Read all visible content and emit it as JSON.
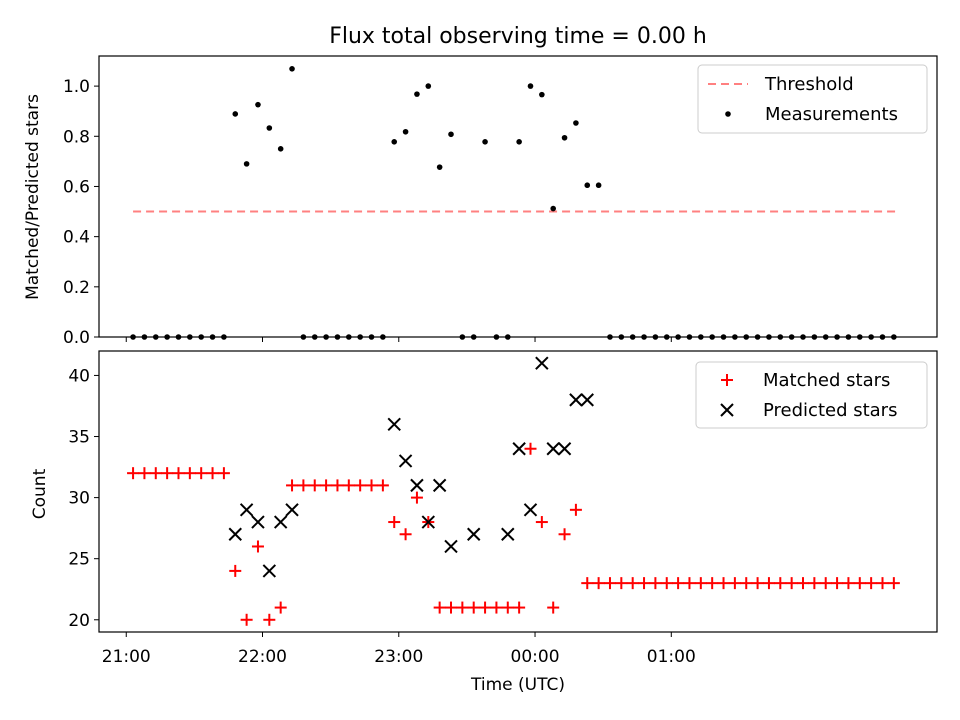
{
  "figure": {
    "title": "Flux total observing time = 0.00 h"
  },
  "chart_data": [
    {
      "type": "scatter",
      "title": "Flux total observing time = 0.00 h",
      "xlabel": "",
      "ylabel": "Matched/Predicted stars",
      "xlim": [
        "20:48",
        "26:57"
      ],
      "ylim": [
        0,
        1.12
      ],
      "yticks": [
        0.0,
        0.2,
        0.4,
        0.6,
        0.8,
        1.0
      ],
      "ytick_labels": [
        "0.0",
        "0.2",
        "0.4",
        "0.6",
        "0.8",
        "1.0"
      ],
      "grid": false,
      "legend": "top-right",
      "threshold": {
        "name": "Threshold",
        "y": 0.5,
        "x_start": "21:03",
        "x_end": "26:40",
        "color": "#ff8080",
        "style": "dashed"
      },
      "series": [
        {
          "name": "Measurements",
          "color": "#000000",
          "marker": "dot",
          "x": [
            "21:03",
            "21:08",
            "21:13",
            "21:18",
            "21:23",
            "21:28",
            "21:33",
            "21:38",
            "21:43",
            "21:48",
            "21:53",
            "21:58",
            "22:03",
            "22:08",
            "22:13",
            "22:18",
            "22:23",
            "22:28",
            "22:33",
            "22:38",
            "22:43",
            "22:48",
            "22:53",
            "22:58",
            "23:03",
            "23:08",
            "23:13",
            "23:18",
            "23:23",
            "23:28",
            "23:33",
            "23:38",
            "23:43",
            "23:48",
            "23:53",
            "23:58",
            "24:03",
            "24:08",
            "24:13",
            "24:18",
            "24:23",
            "24:28",
            "24:33",
            "24:38",
            "24:43",
            "24:48",
            "24:53",
            "24:58",
            "25:03",
            "25:08",
            "25:13",
            "25:18",
            "25:23",
            "25:28",
            "25:33",
            "25:38",
            "25:43",
            "25:48",
            "25:53",
            "25:58",
            "26:03",
            "26:08",
            "26:13",
            "26:18",
            "26:23",
            "26:28",
            "26:33",
            "26:38"
          ],
          "y": [
            0,
            0,
            0,
            0,
            0,
            0,
            0,
            0,
            0,
            0.889,
            0.69,
            0.926,
            0.833,
            0.75,
            1.069,
            0,
            0,
            0,
            0,
            0,
            0,
            0,
            0,
            0.778,
            0.818,
            0.968,
            1.0,
            0.677,
            0.808,
            0,
            0,
            0.778,
            0,
            0,
            0.778,
            1.0,
            0.966,
            0.512,
            0.794,
            0.853,
            0.605,
            0.605,
            0,
            0,
            0,
            0,
            0,
            0,
            0,
            0,
            0,
            0,
            0,
            0,
            0,
            0,
            0,
            0,
            0,
            0,
            0,
            0,
            0,
            0,
            0,
            0,
            0,
            0
          ]
        }
      ]
    },
    {
      "type": "scatter",
      "xlabel": "Time (UTC)",
      "ylabel": "Count",
      "xlim": [
        "20:48",
        "26:57"
      ],
      "ylim": [
        19,
        42
      ],
      "yticks": [
        20,
        25,
        30,
        35,
        40
      ],
      "ytick_labels": [
        "20",
        "25",
        "30",
        "35",
        "40"
      ],
      "xticks": [
        "21:00",
        "22:00",
        "23:00",
        "24:00",
        "25:00"
      ],
      "xtick_labels": [
        "21:00",
        "22:00",
        "23:00",
        "00:00",
        "01:00"
      ],
      "grid": false,
      "legend": "top-right",
      "series": [
        {
          "name": "Matched stars",
          "color": "#ff0000",
          "marker": "plus",
          "x": [
            "21:03",
            "21:08",
            "21:13",
            "21:18",
            "21:23",
            "21:28",
            "21:33",
            "21:38",
            "21:43",
            "21:48",
            "21:53",
            "21:58",
            "22:03",
            "22:08",
            "22:13",
            "22:18",
            "22:23",
            "22:28",
            "22:33",
            "22:38",
            "22:43",
            "22:48",
            "22:53",
            "22:58",
            "23:03",
            "23:08",
            "23:13",
            "23:18",
            "23:23",
            "23:28",
            "23:33",
            "23:38",
            "23:43",
            "23:48",
            "23:53",
            "23:58",
            "24:03",
            "24:08",
            "24:13",
            "24:18",
            "24:23",
            "24:28",
            "24:33",
            "24:38",
            "24:43",
            "24:48",
            "24:53",
            "24:58",
            "25:03",
            "25:08",
            "25:13",
            "25:18",
            "25:23",
            "25:28",
            "25:33",
            "25:38",
            "25:43",
            "25:48",
            "25:53",
            "25:58",
            "26:03",
            "26:08",
            "26:13",
            "26:18",
            "26:23",
            "26:28",
            "26:33",
            "26:38"
          ],
          "y": [
            32,
            32,
            32,
            32,
            32,
            32,
            32,
            32,
            32,
            24,
            20,
            26,
            20,
            21,
            31,
            31,
            31,
            31,
            31,
            31,
            31,
            31,
            31,
            28,
            27,
            30,
            28,
            21,
            21,
            21,
            21,
            21,
            21,
            21,
            21,
            34,
            28,
            21,
            27,
            29,
            23,
            23,
            23,
            23,
            23,
            23,
            23,
            23,
            23,
            23,
            23,
            23,
            23,
            23,
            23,
            23,
            23,
            23,
            23,
            23,
            23,
            23,
            23,
            23,
            23,
            23,
            23,
            23
          ]
        },
        {
          "name": "Predicted stars",
          "color": "#000000",
          "marker": "x",
          "x": [
            "21:48",
            "21:53",
            "21:58",
            "22:03",
            "22:08",
            "22:13",
            "22:58",
            "23:03",
            "23:08",
            "23:13",
            "23:18",
            "23:23",
            "23:33",
            "23:48",
            "23:53",
            "23:58",
            "24:03",
            "24:08",
            "24:13",
            "24:18",
            "24:23"
          ],
          "y": [
            27,
            29,
            28,
            24,
            28,
            29,
            36,
            33,
            31,
            28,
            31,
            26,
            27,
            27,
            34,
            29,
            41,
            34,
            34,
            38,
            38
          ]
        }
      ]
    }
  ]
}
